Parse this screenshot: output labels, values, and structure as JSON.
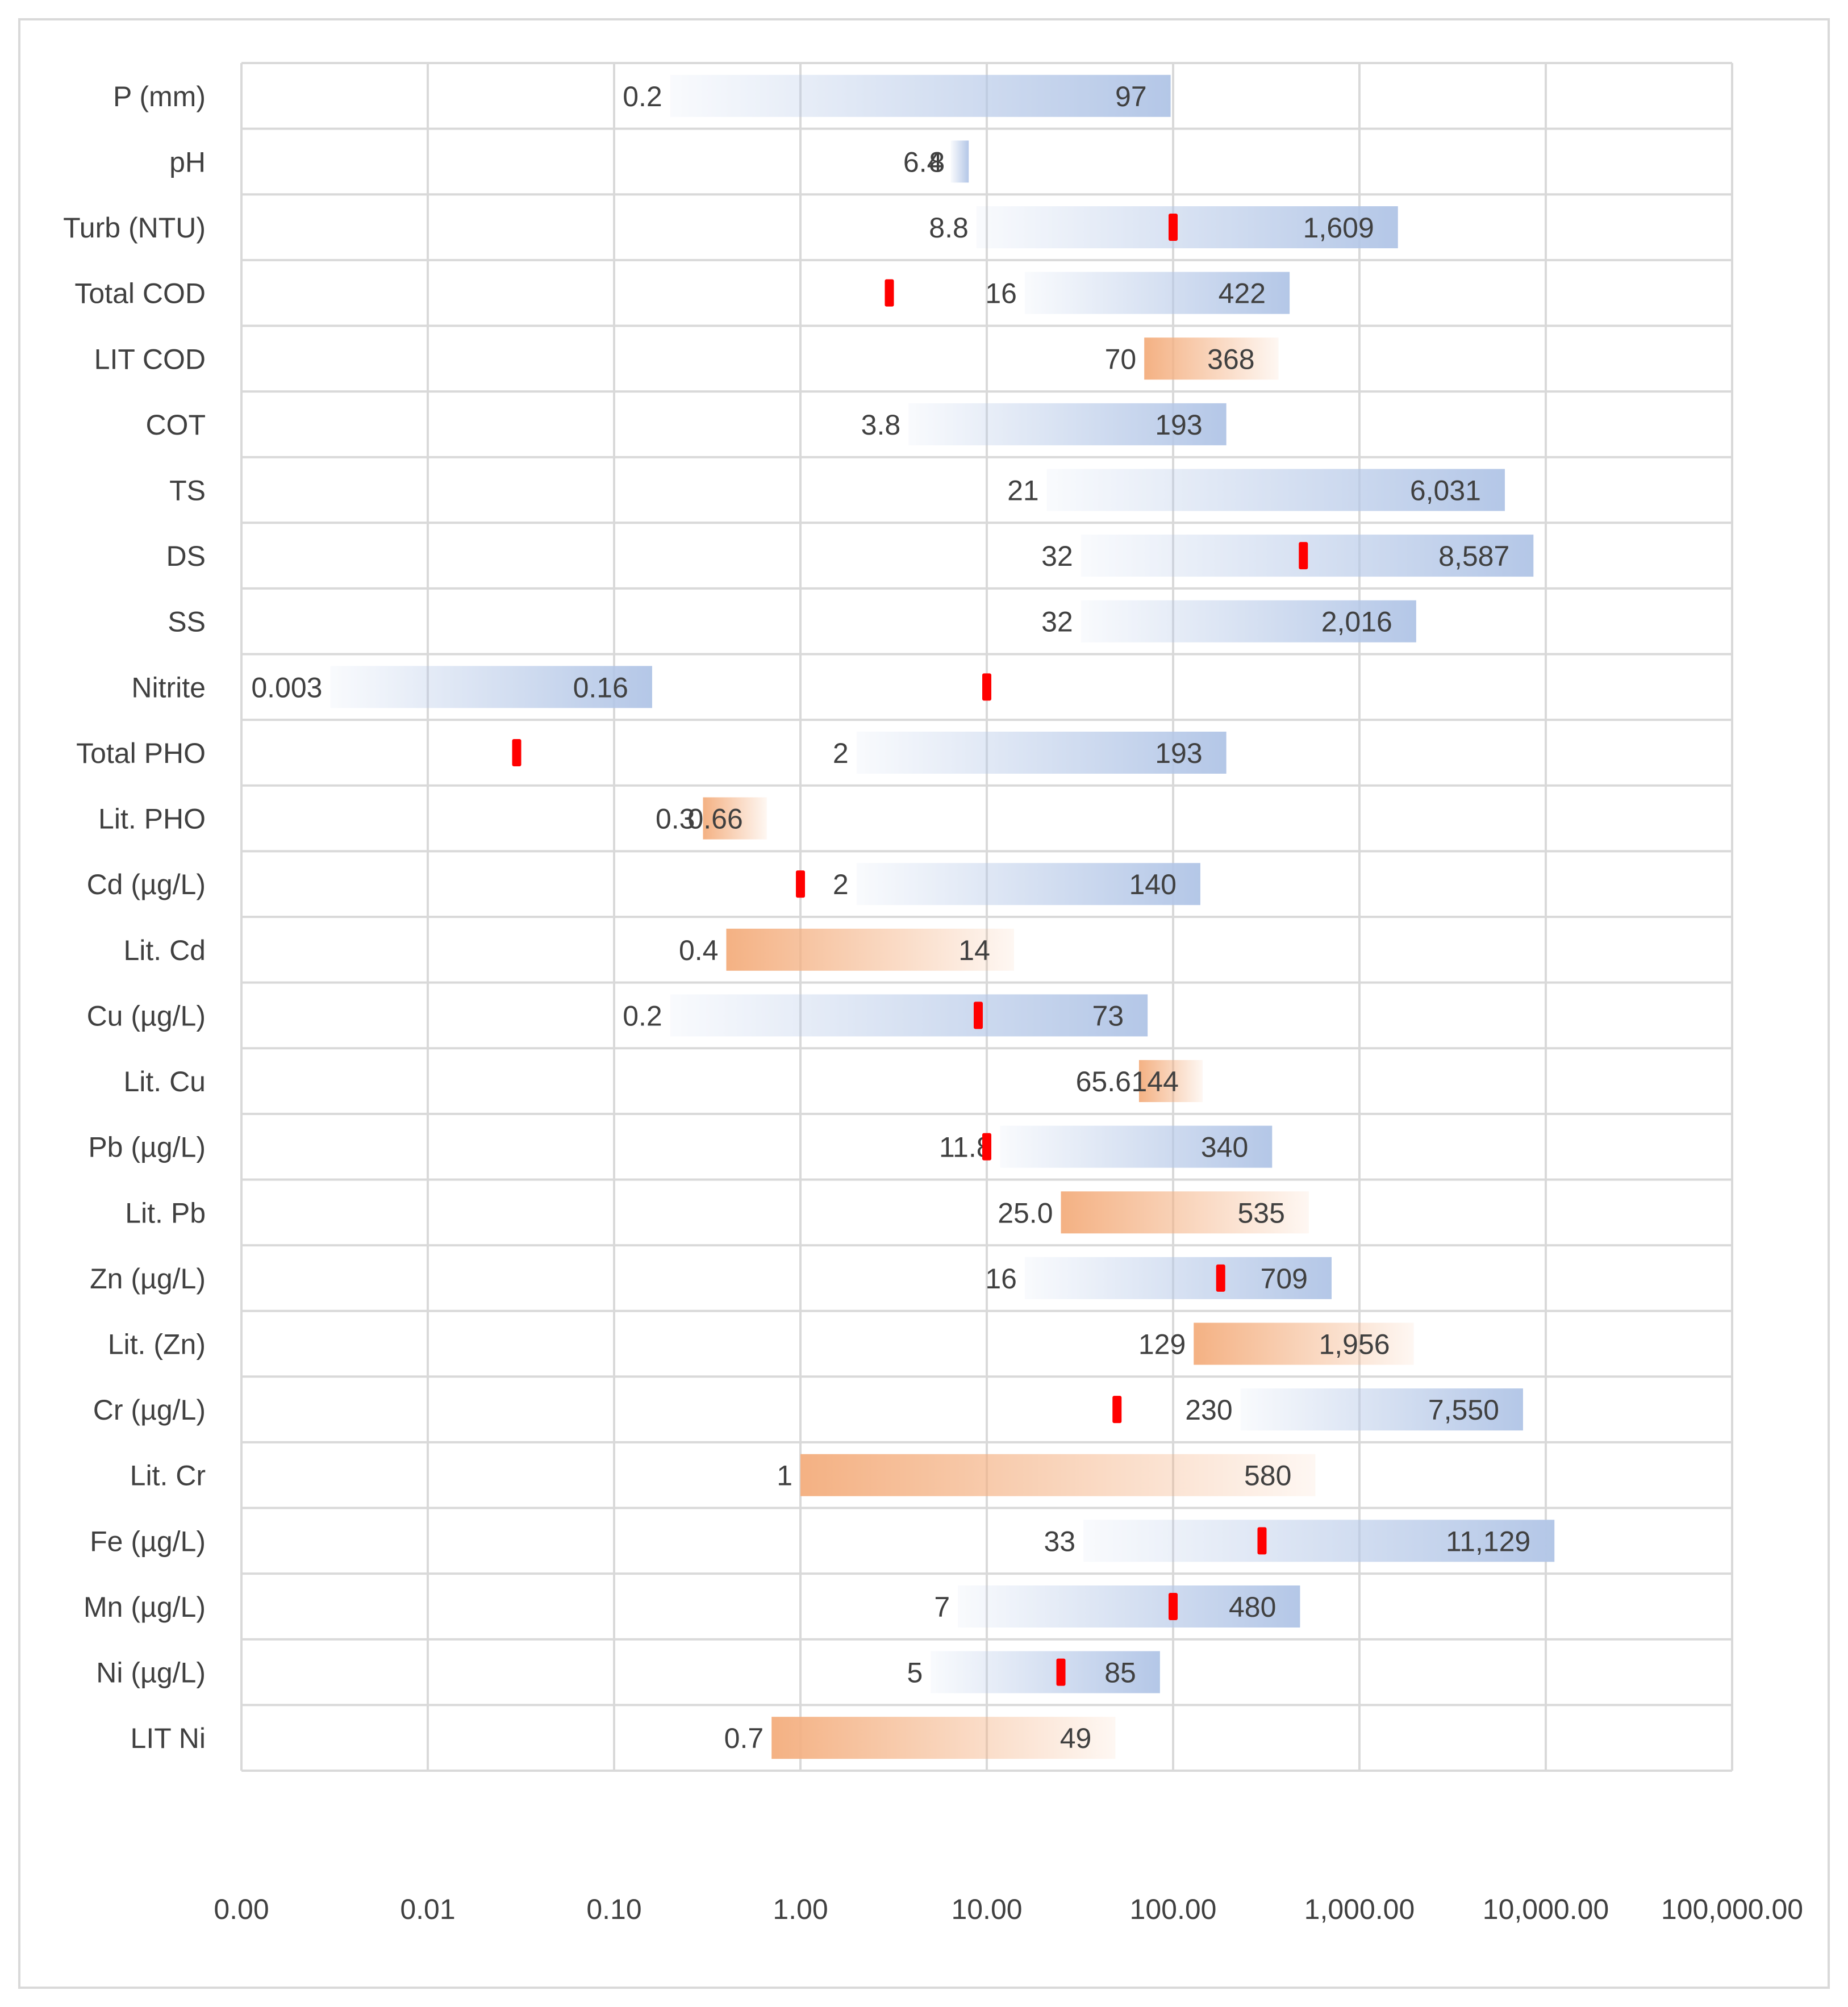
{
  "chart_data": {
    "type": "bar",
    "subtype": "floating-range-horizontal",
    "x_scale": "log",
    "xlim": [
      0.001,
      100000
    ],
    "grid": true,
    "legend": "none",
    "x_tick_values": [
      0.001,
      0.01,
      0.1,
      1,
      10,
      100,
      1000,
      10000,
      100000
    ],
    "x_tick_labels": [
      "0.00",
      "0.01",
      "0.10",
      "1.00",
      "10.00",
      "100.00",
      "1,000.00",
      "10,000.00",
      "100,000.00"
    ],
    "colors": {
      "measured": "#b4c7e7",
      "literature": "#f4b183",
      "marker": "#ff0000",
      "grid": "#d9d9d9",
      "text": "#404040"
    },
    "rows": [
      {
        "label": "P (mm)",
        "kind": "measured",
        "min": 0.2,
        "max": 97,
        "min_label": "0.2",
        "max_label": "97",
        "marker": null
      },
      {
        "label": "pH",
        "kind": "measured",
        "min": 6.4,
        "max": 8,
        "min_label": "6.4",
        "max_label": "8",
        "marker": null
      },
      {
        "label": "Turb (NTU)",
        "kind": "measured",
        "min": 8.8,
        "max": 1609,
        "min_label": "8.8",
        "max_label": "1,609",
        "marker": 100
      },
      {
        "label": "Total COD",
        "kind": "measured",
        "min": 16,
        "max": 422,
        "min_label": "16",
        "max_label": "422",
        "marker": 3
      },
      {
        "label": "LIT COD",
        "kind": "literature",
        "min": 70,
        "max": 368,
        "min_label": "70",
        "max_label": "368",
        "marker": null
      },
      {
        "label": "COT",
        "kind": "measured",
        "min": 3.8,
        "max": 193,
        "min_label": "3.8",
        "max_label": "193",
        "marker": null
      },
      {
        "label": "TS",
        "kind": "measured",
        "min": 21,
        "max": 6031,
        "min_label": "21",
        "max_label": "6,031",
        "marker": null
      },
      {
        "label": "DS",
        "kind": "measured",
        "min": 32,
        "max": 8587,
        "min_label": "32",
        "max_label": "8,587",
        "marker": 500
      },
      {
        "label": "SS",
        "kind": "measured",
        "min": 32,
        "max": 2016,
        "min_label": "32",
        "max_label": "2,016",
        "marker": null
      },
      {
        "label": "Nitrite",
        "kind": "measured",
        "min": 0.003,
        "max": 0.16,
        "min_label": "0.003",
        "max_label": "0.16",
        "marker": 10
      },
      {
        "label": "Total PHO",
        "kind": "measured",
        "min": 2,
        "max": 193,
        "min_label": "2",
        "max_label": "193",
        "marker": 0.03
      },
      {
        "label": "Lit. PHO",
        "kind": "literature",
        "min": 0.3,
        "max": 0.66,
        "min_label": "0.3",
        "max_label": "0.66",
        "marker": null
      },
      {
        "label": "Cd (µg/L)",
        "kind": "measured",
        "min": 2,
        "max": 140,
        "min_label": "2",
        "max_label": "140",
        "marker": 1
      },
      {
        "label": "Lit. Cd",
        "kind": "literature",
        "min": 0.4,
        "max": 14,
        "min_label": "0.4",
        "max_label": "14",
        "marker": null
      },
      {
        "label": "Cu (µg/L)",
        "kind": "measured",
        "min": 0.2,
        "max": 73,
        "min_label": "0.2",
        "max_label": "73",
        "marker": 9
      },
      {
        "label": "Lit. Cu",
        "kind": "literature",
        "min": 65.6,
        "max": 144,
        "min_label": "65.6",
        "max_label": "144",
        "marker": null
      },
      {
        "label": "Pb (µg/L)",
        "kind": "measured",
        "min": 11.8,
        "max": 340,
        "min_label": "11.8",
        "max_label": "340",
        "marker": 10
      },
      {
        "label": "Lit. Pb",
        "kind": "literature",
        "min": 25.0,
        "max": 535,
        "min_label": "25.0",
        "max_label": "535",
        "marker": null
      },
      {
        "label": "Zn (µg/L)",
        "kind": "measured",
        "min": 16,
        "max": 709,
        "min_label": "16",
        "max_label": "709",
        "marker": 180
      },
      {
        "label": "Lit. (Zn)",
        "kind": "literature",
        "min": 129,
        "max": 1956,
        "min_label": "129",
        "max_label": "1,956",
        "marker": null
      },
      {
        "label": "Cr (µg/L)",
        "kind": "measured",
        "min": 230,
        "max": 7550,
        "min_label": "230",
        "max_label": "7,550",
        "marker": 50
      },
      {
        "label": "Lit. Cr",
        "kind": "literature",
        "min": 1,
        "max": 580,
        "min_label": "1",
        "max_label": "580",
        "marker": null
      },
      {
        "label": "Fe (µg/L)",
        "kind": "measured",
        "min": 33,
        "max": 11129,
        "min_label": "33",
        "max_label": "11,129",
        "marker": 300
      },
      {
        "label": "Mn (µg/L)",
        "kind": "measured",
        "min": 7,
        "max": 480,
        "min_label": "7",
        "max_label": "480",
        "marker": 100
      },
      {
        "label": "Ni (µg/L)",
        "kind": "measured",
        "min": 5,
        "max": 85,
        "min_label": "5",
        "max_label": "85",
        "marker": 25
      },
      {
        "label": "LIT Ni",
        "kind": "literature",
        "min": 0.7,
        "max": 49,
        "min_label": "0.7",
        "max_label": "49",
        "marker": null
      }
    ]
  }
}
